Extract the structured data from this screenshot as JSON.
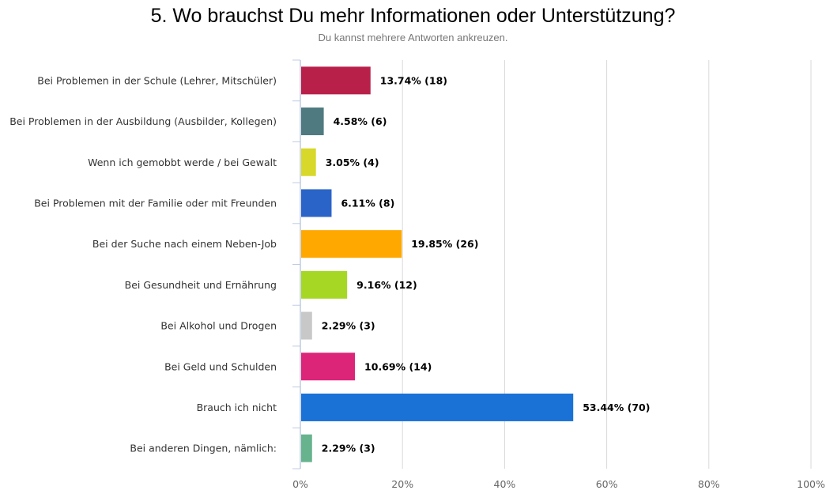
{
  "chart_data": {
    "type": "bar",
    "orientation": "horizontal",
    "title": "5. Wo brauchst Du mehr Informationen oder Unterstützung?",
    "subtitle": "Du kannst mehrere Antworten ankreuzen.",
    "categories": [
      "Bei Problemen in der Schule (Lehrer, Mitschüler)",
      "Bei Problemen in der Ausbildung (Ausbilder, Kollegen)",
      "Wenn ich gemobbt werde / bei Gewalt",
      "Bei Problemen mit der Familie oder mit Freunden",
      "Bei der Suche nach einem Neben-Job",
      "Bei Gesundheit und Ernährung",
      "Bei Alkohol und Drogen",
      "Bei Geld und Schulden",
      "Brauch ich nicht",
      "Bei anderen Dingen, nämlich:"
    ],
    "values": [
      13.74,
      4.58,
      3.05,
      6.11,
      19.85,
      9.16,
      2.29,
      10.69,
      53.44,
      2.29
    ],
    "counts": [
      18,
      6,
      4,
      8,
      26,
      12,
      3,
      14,
      70,
      3
    ],
    "value_labels": [
      "13.74% (18)",
      "4.58% (6)",
      "3.05% (4)",
      "6.11% (8)",
      "19.85% (26)",
      "9.16% (12)",
      "2.29% (3)",
      "10.69% (14)",
      "53.44% (70)",
      "2.29% (3)"
    ],
    "colors": [
      "#b8204a",
      "#4e7a80",
      "#d8d82a",
      "#2b64c8",
      "#ffa800",
      "#a6d724",
      "#c8c8c8",
      "#dc2478",
      "#1a72d6",
      "#66b38e"
    ],
    "xlim": [
      0,
      100
    ],
    "xticks": [
      0,
      20,
      40,
      60,
      80,
      100
    ],
    "xtick_labels": [
      "0%",
      "20%",
      "40%",
      "60%",
      "80%",
      "100%"
    ],
    "grid": true
  }
}
